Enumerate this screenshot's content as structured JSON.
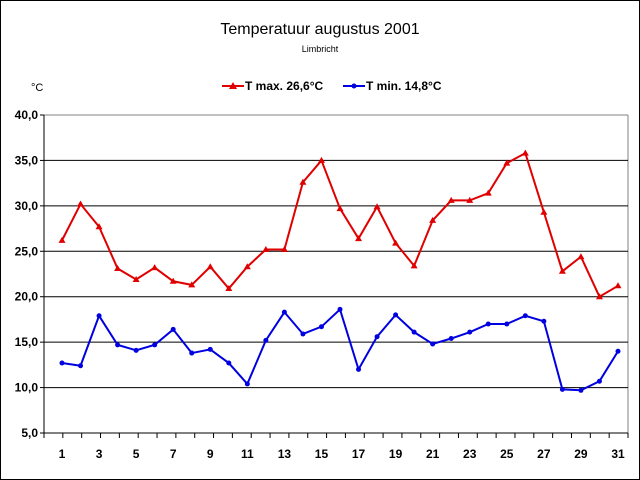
{
  "chart_data": {
    "type": "line",
    "title": "Temperatuur augustus 2001",
    "subtitle": "Limbricht",
    "ylabel": "°C",
    "xlabel": "",
    "ylim": [
      5,
      40
    ],
    "yticks": [
      "5,0",
      "10,0",
      "15,0",
      "20,0",
      "25,0",
      "30,0",
      "35,0",
      "40,0"
    ],
    "xticks": [
      "1",
      "3",
      "5",
      "7",
      "9",
      "11",
      "13",
      "15",
      "17",
      "19",
      "21",
      "23",
      "25",
      "27",
      "29",
      "31"
    ],
    "x": [
      1,
      2,
      3,
      4,
      5,
      6,
      7,
      8,
      9,
      10,
      11,
      12,
      13,
      14,
      15,
      16,
      17,
      18,
      19,
      20,
      21,
      22,
      23,
      24,
      25,
      26,
      27,
      28,
      29,
      30,
      31
    ],
    "grid": true,
    "legend_position": "top",
    "series": [
      {
        "name": "T max. 26,6°C",
        "color": "#e00000",
        "marker": "triangle",
        "values": [
          26.2,
          30.2,
          27.7,
          23.1,
          21.9,
          23.2,
          21.7,
          21.3,
          23.3,
          20.9,
          23.3,
          25.2,
          25.2,
          32.6,
          35.0,
          29.7,
          26.4,
          29.9,
          25.9,
          23.4,
          28.4,
          30.6,
          30.6,
          31.4,
          34.7,
          35.8,
          29.3,
          22.8,
          24.4,
          20.0,
          21.2
        ]
      },
      {
        "name": "T min. 14,8°C",
        "color": "#0000e0",
        "marker": "circle",
        "values": [
          12.7,
          12.4,
          17.9,
          14.7,
          14.1,
          14.7,
          16.4,
          13.8,
          14.2,
          12.7,
          10.4,
          15.2,
          18.3,
          15.9,
          16.7,
          18.6,
          12.0,
          15.6,
          18.0,
          16.1,
          14.8,
          15.4,
          16.1,
          17.0,
          17.0,
          17.9,
          17.3,
          9.8,
          9.7,
          10.7,
          14.0
        ]
      }
    ]
  }
}
